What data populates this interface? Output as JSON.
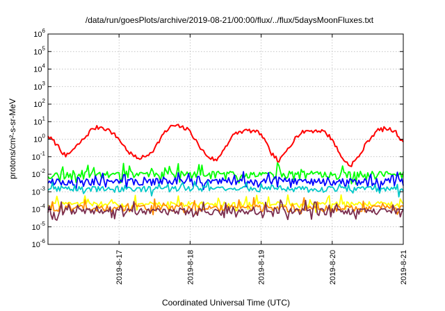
{
  "chart_data": {
    "type": "line",
    "title": "/data/run/goesPlots/archive/2019-08-21/00:00/flux/../flux/5daysMoonFluxes.txt",
    "xlabel": "Coordinated Universal Time (UTC)",
    "ylabel": "protons/cm²-s-sr-MeV",
    "yscale": "log",
    "ylim": [
      1e-06,
      1000000.0
    ],
    "xlim": [
      "2019-08-16 00:00",
      "2019-08-21 00:00"
    ],
    "grid": true,
    "legend": "none",
    "y_ticks": [
      {
        "value": 1e-06,
        "base": "10",
        "exp": "-6"
      },
      {
        "value": 1e-05,
        "base": "10",
        "exp": "-5"
      },
      {
        "value": 0.0001,
        "base": "10",
        "exp": "-4"
      },
      {
        "value": 0.001,
        "base": "10",
        "exp": "-3"
      },
      {
        "value": 0.01,
        "base": "10",
        "exp": "-2"
      },
      {
        "value": 0.1,
        "base": "10",
        "exp": "-1"
      },
      {
        "value": 1,
        "base": "10",
        "exp": "0"
      },
      {
        "value": 10,
        "base": "10",
        "exp": "1"
      },
      {
        "value": 100,
        "base": "10",
        "exp": "2"
      },
      {
        "value": 1000,
        "base": "10",
        "exp": "3"
      },
      {
        "value": 10000,
        "base": "10",
        "exp": "4"
      },
      {
        "value": 100000,
        "base": "10",
        "exp": "5"
      },
      {
        "value": 1000000,
        "base": "10",
        "exp": "6"
      }
    ],
    "x_ticks": [
      {
        "x": "2019-08-17 00:00",
        "label": "2019-8-17"
      },
      {
        "x": "2019-08-18 00:00",
        "label": "2019-8-18"
      },
      {
        "x": "2019-08-19 00:00",
        "label": "2019-8-19"
      },
      {
        "x": "2019-08-20 00:00",
        "label": "2019-8-20"
      },
      {
        "x": "2019-08-21 00:00",
        "label": "2019-8-21"
      }
    ],
    "series": [
      {
        "color": "#ff0000",
        "x": [
          "2019-08-16 00:00",
          "2019-08-16 03:00",
          "2019-08-16 06:00",
          "2019-08-16 09:00",
          "2019-08-16 12:00",
          "2019-08-16 15:00",
          "2019-08-16 18:00",
          "2019-08-16 21:00",
          "2019-08-17 00:00",
          "2019-08-17 03:00",
          "2019-08-17 06:00",
          "2019-08-17 09:00",
          "2019-08-17 12:00",
          "2019-08-17 15:00",
          "2019-08-17 18:00",
          "2019-08-17 21:00",
          "2019-08-18 00:00",
          "2019-08-18 03:00",
          "2019-08-18 06:00",
          "2019-08-18 09:00",
          "2019-08-18 12:00",
          "2019-08-18 15:00",
          "2019-08-18 18:00",
          "2019-08-18 21:00",
          "2019-08-19 00:00",
          "2019-08-19 03:00",
          "2019-08-19 06:00",
          "2019-08-19 09:00",
          "2019-08-19 12:00",
          "2019-08-19 15:00",
          "2019-08-19 18:00",
          "2019-08-19 21:00",
          "2019-08-20 00:00",
          "2019-08-20 03:00",
          "2019-08-20 06:00",
          "2019-08-20 09:00",
          "2019-08-20 12:00",
          "2019-08-20 15:00",
          "2019-08-20 18:00",
          "2019-08-20 21:00",
          "2019-08-21 00:00"
        ],
        "y": [
          1.5,
          0.5,
          0.1,
          0.3,
          1.0,
          4.0,
          5.0,
          3.0,
          1.0,
          0.2,
          0.08,
          0.1,
          0.3,
          2.0,
          6.0,
          5.0,
          3.0,
          0.4,
          0.1,
          0.06,
          0.4,
          2.0,
          3.0,
          3.0,
          2.0,
          0.2,
          0.05,
          0.3,
          1.5,
          3.0,
          3.0,
          3.0,
          1.0,
          0.1,
          0.03,
          0.1,
          0.8,
          3.0,
          4.0,
          3.0,
          0.7
        ]
      },
      {
        "color": "#00ff00",
        "x": [
          "2019-08-16 00:00",
          "2019-08-21 00:00"
        ],
        "y": [
          0.01,
          0.01
        ],
        "noise": 0.5,
        "spikes": 2.2,
        "seed": 11
      },
      {
        "color": "#0000ff",
        "x": [
          "2019-08-16 00:00",
          "2019-08-21 00:00"
        ],
        "y": [
          0.004,
          0.004
        ],
        "noise": 0.45,
        "spikes": 1.6,
        "seed": 23
      },
      {
        "color": "#00c8c8",
        "x": [
          "2019-08-16 00:00",
          "2019-08-21 00:00"
        ],
        "y": [
          0.0015,
          0.0015
        ],
        "noise": 0.35,
        "spikes": 1.4,
        "seed": 37
      },
      {
        "color": "#ffff00",
        "x": [
          "2019-08-16 00:00",
          "2019-08-21 00:00"
        ],
        "y": [
          0.0002,
          0.0002
        ],
        "noise": 0.35,
        "spikes": 1.8,
        "seed": 41
      },
      {
        "color": "#ff8c00",
        "x": [
          "2019-08-16 00:00",
          "2019-08-21 00:00"
        ],
        "y": [
          0.00012,
          0.00012
        ],
        "noise": 0.4,
        "spikes": 2.0,
        "seed": 53
      },
      {
        "color": "#7b2d4e",
        "x": [
          "2019-08-16 00:00",
          "2019-08-21 00:00"
        ],
        "y": [
          8e-05,
          8e-05
        ],
        "noise": 0.4,
        "spikes": 2.4,
        "seed": 67
      }
    ]
  }
}
